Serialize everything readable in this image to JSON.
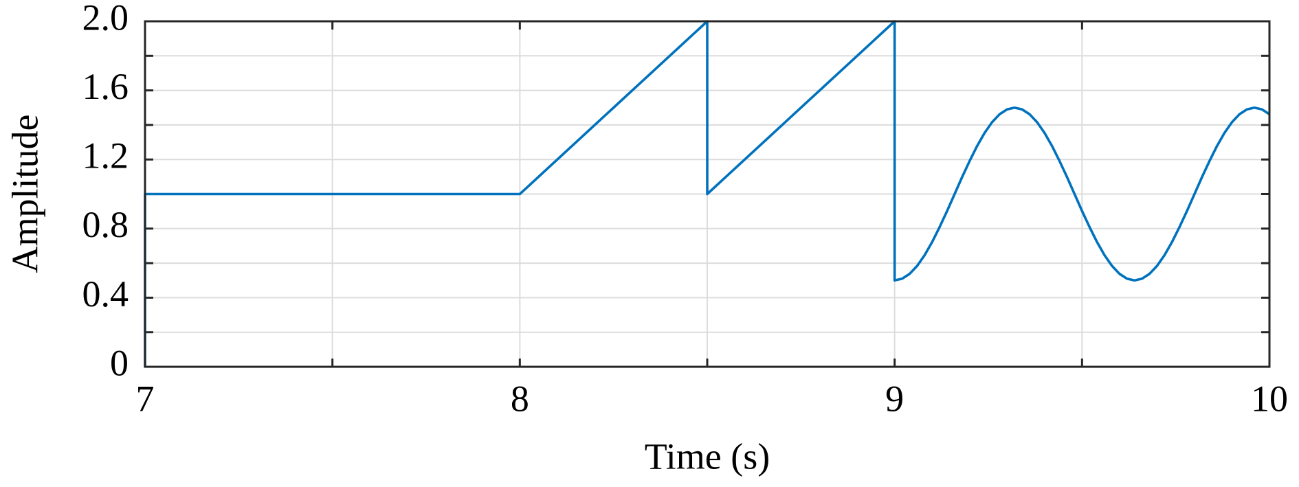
{
  "chart_data": {
    "type": "line",
    "xlabel": "Time (s)",
    "ylabel": "Amplitude",
    "x": [
      7,
      7,
      8,
      8.5,
      8.5,
      9,
      9,
      9.02,
      9.04,
      9.06,
      9.08,
      9.1,
      9.12,
      9.14,
      9.16,
      9.18,
      9.2,
      9.22,
      9.24,
      9.26,
      9.28,
      9.3,
      9.32,
      9.34,
      9.36,
      9.38,
      9.4,
      9.42,
      9.44,
      9.46,
      9.48,
      9.5,
      9.52,
      9.54,
      9.56,
      9.58,
      9.6,
      9.62,
      9.64,
      9.66,
      9.68,
      9.7,
      9.72,
      9.74,
      9.76,
      9.78,
      9.8,
      9.82,
      9.84,
      9.86,
      9.88,
      9.9,
      9.92,
      9.94,
      9.96,
      9.98,
      10
    ],
    "values": [
      0,
      1,
      1,
      2,
      1,
      2,
      0.5,
      0.51,
      0.538,
      0.584,
      0.646,
      0.722,
      0.809,
      0.902,
      1,
      1.098,
      1.191,
      1.278,
      1.354,
      1.416,
      1.462,
      1.49,
      1.5,
      1.49,
      1.462,
      1.416,
      1.354,
      1.278,
      1.191,
      1.098,
      1,
      0.902,
      0.809,
      0.722,
      0.646,
      0.584,
      0.538,
      0.51,
      0.5,
      0.51,
      0.538,
      0.584,
      0.646,
      0.722,
      0.809,
      0.902,
      1,
      1.098,
      1.191,
      1.278,
      1.354,
      1.416,
      1.462,
      1.49,
      1.5,
      1.49,
      1.462
    ],
    "color": "#0072bd",
    "xlim": [
      7,
      10
    ],
    "xticks": [
      7,
      8,
      9,
      10
    ],
    "xminorticks": [
      7.5,
      8.5,
      9.5
    ],
    "ylim": [
      0,
      2
    ],
    "yticks": [
      0,
      0.4,
      0.8,
      1.2,
      1.6,
      {
        "value": 2,
        "label": "2.0"
      }
    ],
    "yminorticks": [
      0.2,
      0.6,
      1,
      1.4,
      1.8
    ],
    "grid": true
  }
}
